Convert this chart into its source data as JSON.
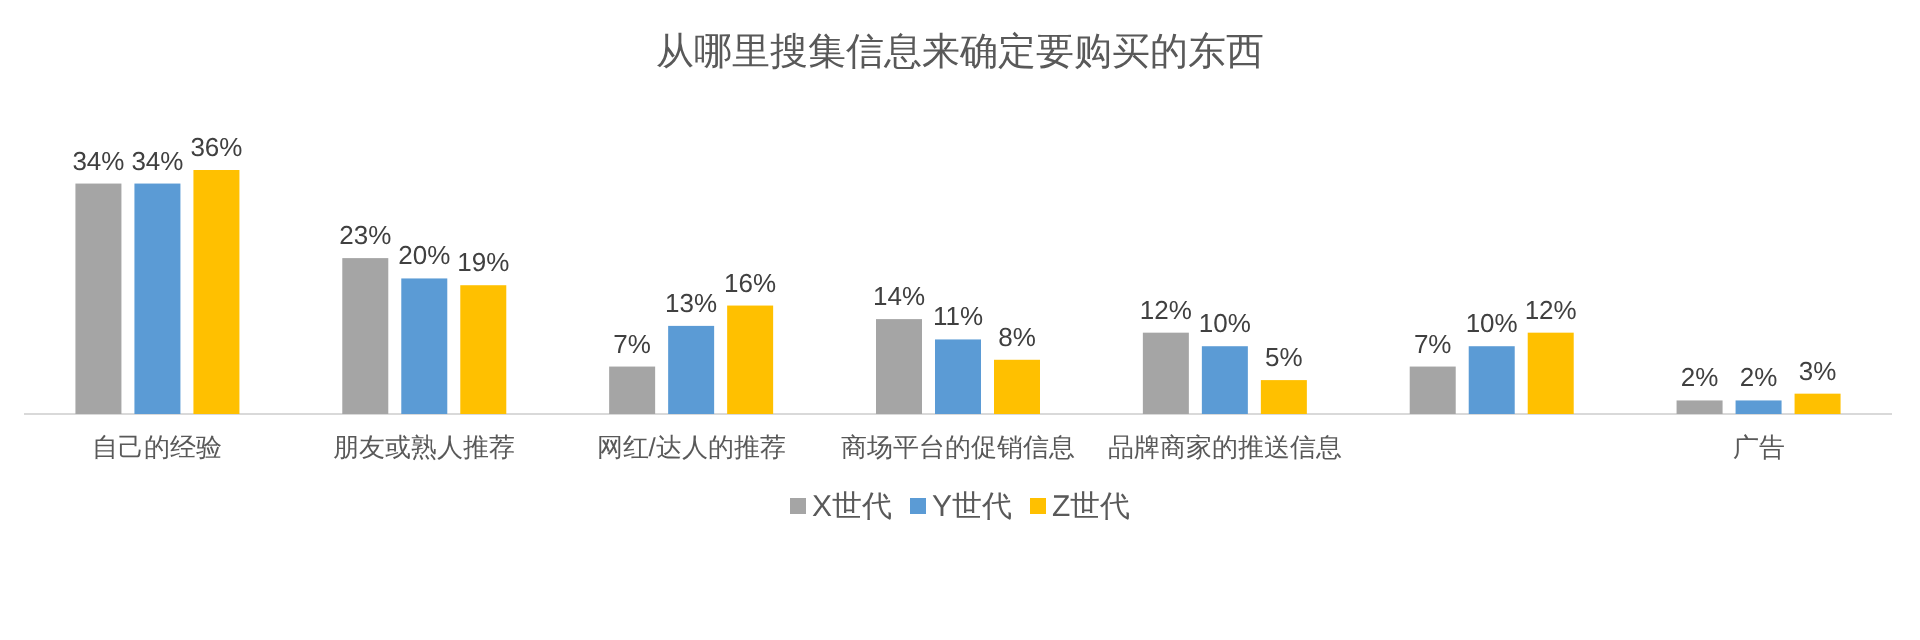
{
  "chart_data": {
    "type": "bar",
    "title": "从哪里搜集信息来确定要购买的东西",
    "categories": [
      "自己的经验",
      "朋友或熟人推荐",
      "网红/达人的推荐",
      "商场平台的促销信息",
      "品牌商家的推送信息",
      null,
      "广告"
    ],
    "series": [
      {
        "name": "X世代",
        "color": "#a5a5a5",
        "values": [
          34,
          23,
          7,
          14,
          12,
          7,
          2
        ],
        "value_labels": [
          "34%",
          "23%",
          "7%",
          "14%",
          "12%",
          "7%",
          "2%"
        ]
      },
      {
        "name": "Y世代",
        "color": "#5b9bd5",
        "values": [
          34,
          20,
          13,
          11,
          10,
          10,
          2
        ],
        "value_labels": [
          "34%",
          "20%",
          "13%",
          "11%",
          "10%",
          "10%",
          "2%"
        ]
      },
      {
        "name": "Z世代",
        "color": "#ffc000",
        "values": [
          36,
          19,
          16,
          8,
          5,
          12,
          3
        ],
        "value_labels": [
          "36%",
          "19%",
          "16%",
          "8%",
          "5%",
          "12%",
          "3%"
        ]
      }
    ],
    "legend": "bottom"
  }
}
